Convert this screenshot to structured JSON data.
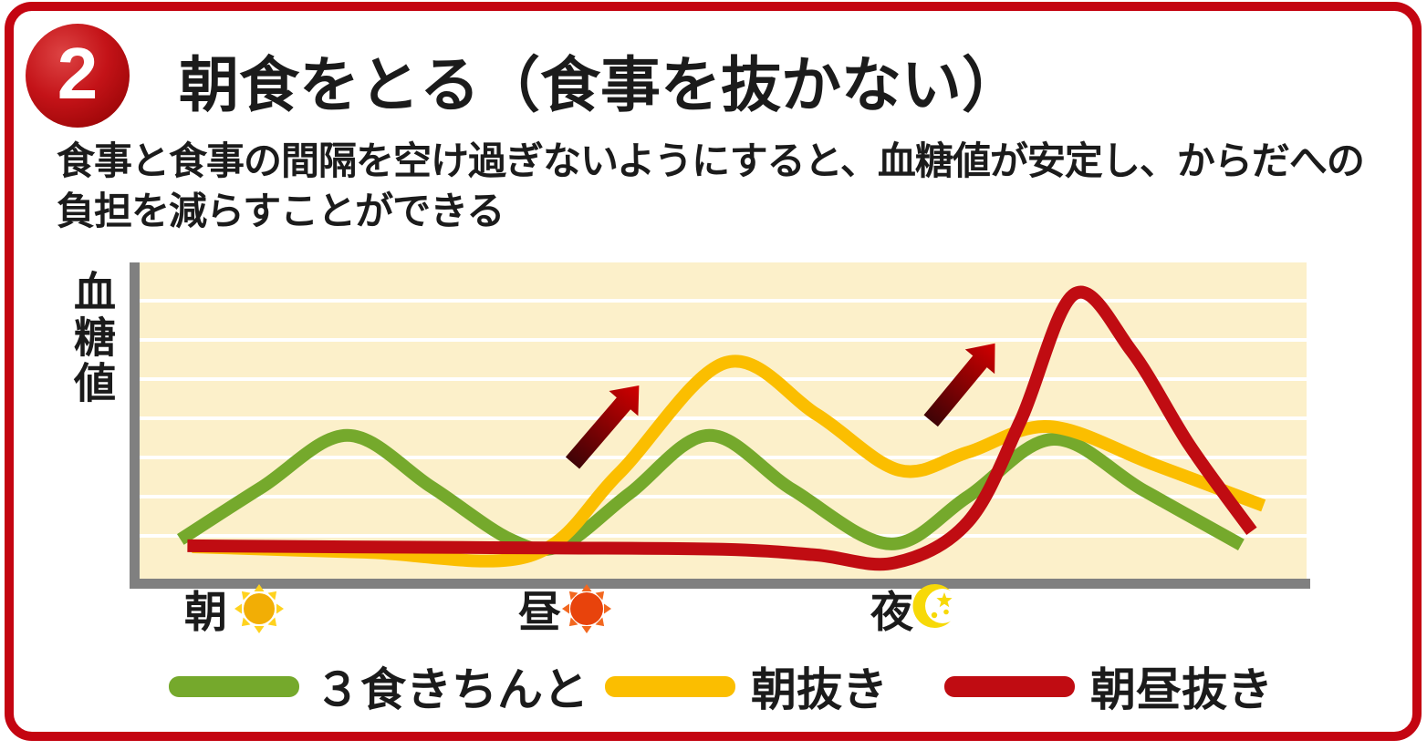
{
  "badge": {
    "number": "2"
  },
  "title": "朝食をとる（食事を抜かない）",
  "description": {
    "line1": "食事と食事の間隔を空け過ぎないようにすると、血糖値が安定し、からだへの",
    "line2": "負担を減らすことができる"
  },
  "colors": {
    "accent_red": "#C40511",
    "text_dark": "#1B1B1B",
    "chart_bg": "#FCF0CA",
    "grid_white": "#FFFFFF",
    "axis_gray": "#808080",
    "series_green": "#75A92C",
    "series_yellow": "#FBBE00",
    "series_red": "#C00C12",
    "arrow_dark": "#3F0306",
    "arrow_bright": "#D10000",
    "sun_morning_body": "#F2AE05",
    "sun_morning_rays": "#FFD21E",
    "sun_noon_body": "#E8430C",
    "sun_noon_rays": "#F2671F",
    "moon_yellow": "#F7D908"
  },
  "chart_data": {
    "type": "line",
    "title": "",
    "xlabel": "",
    "ylabel": "血糖値",
    "grid": true,
    "gridline_count": 7,
    "axis_style": "thick-gray-L",
    "x_axis_labels": [
      {
        "label": "朝",
        "icon": "morning-sun-icon"
      },
      {
        "label": "昼",
        "icon": "noon-sun-icon"
      },
      {
        "label": "夜",
        "icon": "night-moon-icon"
      }
    ],
    "note": "Qualitative blood-glucose curves over one day; points are [x% of plot width, y% of plot height above baseline]",
    "series": [
      {
        "name": "３食きちんと",
        "color_key": "series_green",
        "points": [
          [
            3.5,
            12.4
          ],
          [
            10.5,
            29
          ],
          [
            17.8,
            45.3
          ],
          [
            25,
            29
          ],
          [
            31.8,
            12.4
          ],
          [
            36.1,
            10.4
          ],
          [
            42,
            27
          ],
          [
            48.8,
            45.3
          ],
          [
            56,
            28
          ],
          [
            64.3,
            11
          ],
          [
            71,
            26
          ],
          [
            78.3,
            44.1
          ],
          [
            86,
            28
          ],
          [
            94.4,
            10.7
          ]
        ]
      },
      {
        "name": "朝抜き",
        "color_key": "series_yellow",
        "points": [
          [
            4.5,
            10.1
          ],
          [
            19.3,
            8.4
          ],
          [
            33.4,
            7.2
          ],
          [
            41,
            33
          ],
          [
            50.2,
            68.3
          ],
          [
            58,
            52
          ],
          [
            65.1,
            34.3
          ],
          [
            71,
            40
          ],
          [
            78,
            48.1
          ],
          [
            87,
            36
          ],
          [
            96.3,
            23.1
          ]
        ]
      },
      {
        "name": "朝昼抜き",
        "color_key": "series_red",
        "points": [
          [
            4.1,
            10.4
          ],
          [
            20,
            10
          ],
          [
            35,
            9.7
          ],
          [
            50,
            9.3
          ],
          [
            58,
            7.5
          ],
          [
            64.7,
            5
          ],
          [
            71,
            18
          ],
          [
            75.5,
            50
          ],
          [
            80.1,
            90
          ],
          [
            85,
            72
          ],
          [
            90,
            42
          ],
          [
            95.3,
            15
          ]
        ]
      }
    ],
    "annotations": [
      {
        "type": "rise-arrow",
        "from": [
          37.1,
          36.6
        ],
        "to": [
          42.8,
          61.1
        ]
      },
      {
        "type": "rise-arrow",
        "from": [
          67.8,
          49.9
        ],
        "to": [
          73.3,
          74.4
        ]
      }
    ],
    "legend_position": "bottom"
  },
  "legend": [
    {
      "label": "３食きちんと",
      "color_key": "series_green"
    },
    {
      "label": "朝抜き",
      "color_key": "series_yellow"
    },
    {
      "label": "朝昼抜き",
      "color_key": "series_red"
    }
  ]
}
